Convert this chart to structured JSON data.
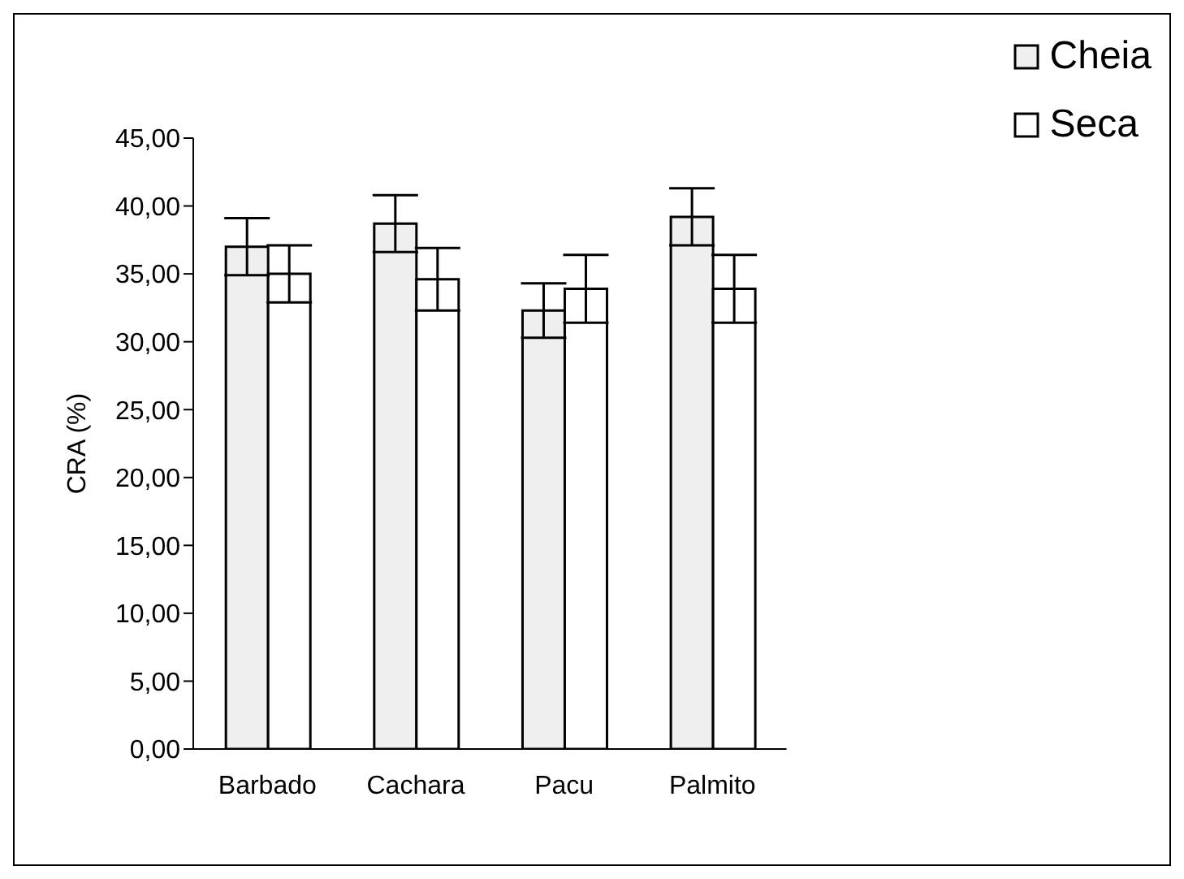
{
  "chart_data": {
    "type": "bar",
    "ylabel": "CRA (%)",
    "categories": [
      "Barbado",
      "Cachara",
      "Pacu",
      "Palmito"
    ],
    "series": [
      {
        "name": "Cheia",
        "color": "#efefef",
        "values": [
          37.0,
          38.7,
          32.3,
          39.2
        ],
        "errors": [
          2.1,
          2.1,
          2.0,
          2.1
        ]
      },
      {
        "name": "Seca",
        "color": "#ffffff",
        "values": [
          35.0,
          34.6,
          33.9,
          33.9
        ],
        "errors": [
          2.1,
          2.3,
          2.5,
          2.5
        ]
      }
    ],
    "ylim": [
      0,
      45
    ],
    "yticks": [
      {
        "value": 0,
        "label": "0,00"
      },
      {
        "value": 5,
        "label": "5,00"
      },
      {
        "value": 10,
        "label": "10,00"
      },
      {
        "value": 15,
        "label": "15,00"
      },
      {
        "value": 20,
        "label": "20,00"
      },
      {
        "value": 25,
        "label": "25,00"
      },
      {
        "value": 30,
        "label": "30,00"
      },
      {
        "value": 35,
        "label": "35,00"
      },
      {
        "value": 40,
        "label": "40,00"
      },
      {
        "value": 45,
        "label": "45,00"
      }
    ],
    "grid": false,
    "legend": "top right"
  }
}
